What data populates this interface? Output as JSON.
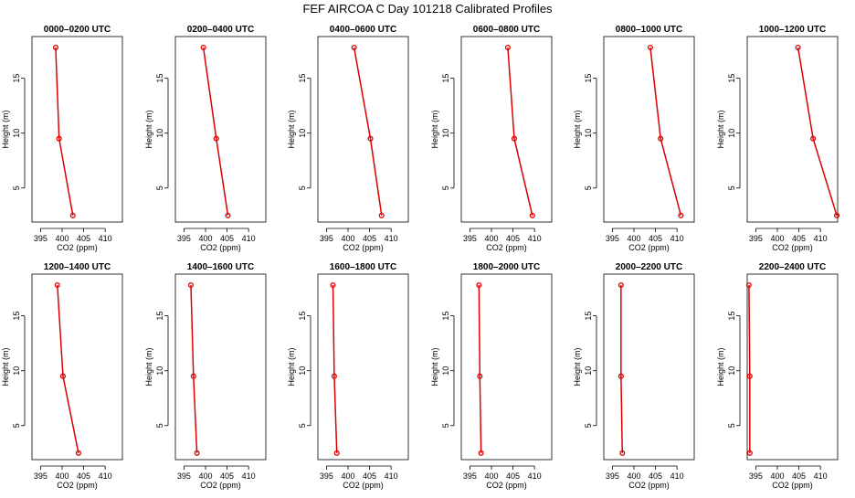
{
  "colors": {
    "series": "#dd0000",
    "axis": "#000000",
    "background": "#ffffff"
  },
  "chart_data": {
    "type": "line",
    "title": "FEF  AIRCOA C  Day 101218  Calibrated Profiles",
    "xlabel": "CO2 (ppm)",
    "ylabel": "Height (m)",
    "xlim": [
      393,
      414
    ],
    "ylim": [
      1.9,
      18.8
    ],
    "xticks": [
      395,
      400,
      405,
      410
    ],
    "yticks": [
      5,
      10,
      15
    ],
    "heights": [
      17.8,
      9.5,
      2.5
    ],
    "panels": [
      {
        "title": "0000–0200 UTC",
        "co2": [
          398.5,
          399.3,
          402.5
        ]
      },
      {
        "title": "0200–0400 UTC",
        "co2": [
          399.5,
          402.5,
          405.2
        ]
      },
      {
        "title": "0400–0600 UTC",
        "co2": [
          401.4,
          405.2,
          407.8
        ]
      },
      {
        "title": "0600–0800 UTC",
        "co2": [
          403.8,
          405.3,
          409.5
        ]
      },
      {
        "title": "0800–1000 UTC",
        "co2": [
          403.8,
          406.2,
          410.9
        ]
      },
      {
        "title": "1000–1200 UTC",
        "co2": [
          404.8,
          408.3,
          413.8
        ]
      },
      {
        "title": "1200–1400 UTC",
        "co2": [
          398.9,
          400.2,
          403.8
        ]
      },
      {
        "title": "1400–1600 UTC",
        "co2": [
          396.6,
          397.2,
          398.0
        ]
      },
      {
        "title": "1600–1800 UTC",
        "co2": [
          396.5,
          396.8,
          397.4
        ]
      },
      {
        "title": "1800–2000 UTC",
        "co2": [
          397.1,
          397.3,
          397.6
        ]
      },
      {
        "title": "2000–2200 UTC",
        "co2": [
          397.0,
          397.0,
          397.3
        ]
      },
      {
        "title": "2200–2400 UTC",
        "co2": [
          393.4,
          393.6,
          393.6
        ]
      }
    ]
  }
}
